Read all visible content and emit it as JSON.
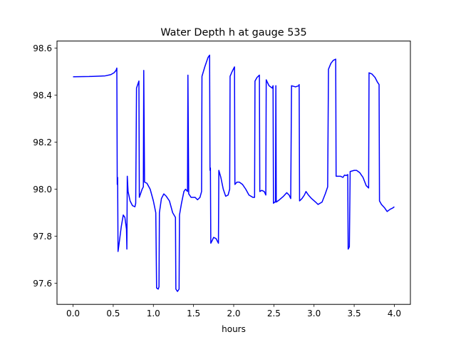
{
  "chart_data": {
    "type": "line",
    "title": "Water Depth h at gauge 535",
    "xlabel": "hours",
    "ylabel": "",
    "xlim": [
      -0.2,
      4.2
    ],
    "ylim": [
      97.51,
      98.63
    ],
    "x_ticks": [
      0.0,
      0.5,
      1.0,
      1.5,
      2.0,
      2.5,
      3.0,
      3.5,
      4.0
    ],
    "x_tick_labels": [
      "0.0",
      "0.5",
      "1.0",
      "1.5",
      "2.0",
      "2.5",
      "3.0",
      "3.5",
      "4.0"
    ],
    "y_ticks": [
      97.6,
      97.8,
      98.0,
      98.2,
      98.4,
      98.6
    ],
    "y_tick_labels": [
      "97.6",
      "97.8",
      "98.0",
      "98.2",
      "98.4",
      "98.6"
    ],
    "grid": false,
    "series": [
      {
        "color": "#0000ff",
        "points": [
          [
            0.0,
            98.478
          ],
          [
            0.2,
            98.479
          ],
          [
            0.4,
            98.482
          ],
          [
            0.47,
            98.487
          ],
          [
            0.51,
            98.495
          ],
          [
            0.535,
            98.505
          ],
          [
            0.545,
            98.515
          ],
          [
            0.55,
            98.02
          ],
          [
            0.555,
            98.05
          ],
          [
            0.56,
            97.735
          ],
          [
            0.57,
            97.76
          ],
          [
            0.6,
            97.84
          ],
          [
            0.625,
            97.89
          ],
          [
            0.645,
            97.88
          ],
          [
            0.665,
            97.83
          ],
          [
            0.67,
            97.745
          ],
          [
            0.675,
            98.055
          ],
          [
            0.685,
            97.99
          ],
          [
            0.71,
            97.95
          ],
          [
            0.74,
            97.93
          ],
          [
            0.77,
            97.925
          ],
          [
            0.78,
            97.94
          ],
          [
            0.79,
            98.43
          ],
          [
            0.82,
            98.46
          ],
          [
            0.825,
            97.965
          ],
          [
            0.86,
            98.0
          ],
          [
            0.875,
            98.01
          ],
          [
            0.88,
            98.505
          ],
          [
            0.89,
            98.03
          ],
          [
            0.92,
            98.025
          ],
          [
            0.96,
            98.0
          ],
          [
            1.0,
            97.95
          ],
          [
            1.03,
            97.9
          ],
          [
            1.04,
            97.58
          ],
          [
            1.06,
            97.575
          ],
          [
            1.07,
            97.585
          ],
          [
            1.075,
            97.9
          ],
          [
            1.1,
            97.96
          ],
          [
            1.13,
            97.98
          ],
          [
            1.16,
            97.97
          ],
          [
            1.2,
            97.95
          ],
          [
            1.24,
            97.9
          ],
          [
            1.275,
            97.88
          ],
          [
            1.28,
            97.575
          ],
          [
            1.3,
            97.565
          ],
          [
            1.32,
            97.575
          ],
          [
            1.325,
            97.89
          ],
          [
            1.35,
            97.94
          ],
          [
            1.38,
            97.99
          ],
          [
            1.4,
            98.0
          ],
          [
            1.425,
            97.99
          ],
          [
            1.43,
            98.485
          ],
          [
            1.44,
            97.98
          ],
          [
            1.47,
            97.965
          ],
          [
            1.52,
            97.965
          ],
          [
            1.55,
            97.955
          ],
          [
            1.58,
            97.965
          ],
          [
            1.6,
            97.99
          ],
          [
            1.605,
            98.48
          ],
          [
            1.64,
            98.52
          ],
          [
            1.68,
            98.56
          ],
          [
            1.7,
            98.57
          ],
          [
            1.705,
            98.08
          ],
          [
            1.71,
            98.09
          ],
          [
            1.715,
            97.77
          ],
          [
            1.73,
            97.78
          ],
          [
            1.75,
            97.795
          ],
          [
            1.78,
            97.79
          ],
          [
            1.81,
            97.77
          ],
          [
            1.815,
            98.08
          ],
          [
            1.84,
            98.05
          ],
          [
            1.87,
            98.0
          ],
          [
            1.9,
            97.97
          ],
          [
            1.93,
            97.975
          ],
          [
            1.95,
            98.0
          ],
          [
            1.955,
            98.48
          ],
          [
            1.98,
            98.5
          ],
          [
            2.01,
            98.52
          ],
          [
            2.015,
            98.02
          ],
          [
            2.04,
            98.03
          ],
          [
            2.07,
            98.03
          ],
          [
            2.11,
            98.02
          ],
          [
            2.15,
            98.0
          ],
          [
            2.19,
            97.975
          ],
          [
            2.24,
            97.965
          ],
          [
            2.26,
            97.965
          ],
          [
            2.265,
            98.46
          ],
          [
            2.29,
            98.475
          ],
          [
            2.32,
            98.485
          ],
          [
            2.325,
            97.99
          ],
          [
            2.35,
            97.995
          ],
          [
            2.38,
            97.99
          ],
          [
            2.4,
            97.975
          ],
          [
            2.405,
            98.465
          ],
          [
            2.44,
            98.44
          ],
          [
            2.48,
            98.43
          ],
          [
            2.49,
            98.44
          ],
          [
            2.495,
            97.94
          ],
          [
            2.51,
            97.945
          ],
          [
            2.52,
            97.945
          ],
          [
            2.525,
            98.44
          ],
          [
            2.53,
            97.945
          ],
          [
            2.57,
            97.955
          ],
          [
            2.62,
            97.97
          ],
          [
            2.66,
            97.985
          ],
          [
            2.69,
            97.975
          ],
          [
            2.71,
            97.96
          ],
          [
            2.72,
            98.44
          ],
          [
            2.77,
            98.435
          ],
          [
            2.81,
            98.44
          ],
          [
            2.815,
            98.445
          ],
          [
            2.82,
            97.95
          ],
          [
            2.85,
            97.96
          ],
          [
            2.88,
            97.975
          ],
          [
            2.9,
            97.99
          ],
          [
            2.93,
            97.975
          ],
          [
            2.97,
            97.96
          ],
          [
            3.02,
            97.945
          ],
          [
            3.05,
            97.935
          ],
          [
            3.1,
            97.945
          ],
          [
            3.14,
            97.98
          ],
          [
            3.17,
            98.01
          ],
          [
            3.18,
            98.51
          ],
          [
            3.21,
            98.535
          ],
          [
            3.24,
            98.548
          ],
          [
            3.27,
            98.553
          ],
          [
            3.275,
            98.055
          ],
          [
            3.3,
            98.055
          ],
          [
            3.33,
            98.055
          ],
          [
            3.36,
            98.05
          ],
          [
            3.38,
            98.06
          ],
          [
            3.4,
            98.058
          ],
          [
            3.42,
            98.062
          ],
          [
            3.425,
            97.745
          ],
          [
            3.44,
            97.755
          ],
          [
            3.45,
            98.075
          ],
          [
            3.5,
            98.08
          ],
          [
            3.53,
            98.08
          ],
          [
            3.57,
            98.07
          ],
          [
            3.61,
            98.05
          ],
          [
            3.65,
            98.015
          ],
          [
            3.68,
            98.005
          ],
          [
            3.685,
            98.495
          ],
          [
            3.72,
            98.49
          ],
          [
            3.76,
            98.475
          ],
          [
            3.79,
            98.455
          ],
          [
            3.81,
            98.445
          ],
          [
            3.815,
            97.95
          ],
          [
            3.84,
            97.935
          ],
          [
            3.88,
            97.92
          ],
          [
            3.91,
            97.905
          ],
          [
            3.95,
            97.915
          ],
          [
            3.98,
            97.92
          ],
          [
            4.0,
            97.925
          ]
        ]
      }
    ]
  }
}
